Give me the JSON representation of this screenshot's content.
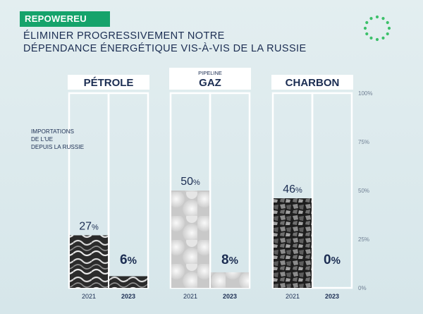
{
  "badge": "REPOWEREU",
  "title_line1": "ÉLIMINER PROGRESSIVEMENT NOTRE",
  "title_line2": "DÉPENDANCE ÉNERGÉTIQUE VIS-À-VIS DE LA RUSSIE",
  "colors": {
    "badge": "#15a36b",
    "navy": "#1b2d52",
    "stars": "#3cc06a"
  },
  "chart_data": {
    "type": "bar",
    "annotation": "IMPORTATIONS DE L'UE DEPUIS LA RUSSIE",
    "ylim": [
      0,
      100
    ],
    "y_ticks": [
      "0%",
      "25%",
      "50%",
      "75%",
      "100%"
    ],
    "categories": [
      "2021",
      "2023"
    ],
    "groups": [
      {
        "label": "PÉTROLE",
        "sublabel": "",
        "values": [
          27,
          6
        ],
        "value_labels": [
          "27%",
          "6%"
        ],
        "texture": "oil"
      },
      {
        "label": "GAZ",
        "sublabel": "PIPELINE",
        "values": [
          50,
          8
        ],
        "value_labels": [
          "50%",
          "8%"
        ],
        "texture": "gas"
      },
      {
        "label": "CHARBON",
        "sublabel": "",
        "values": [
          46,
          0
        ],
        "value_labels": [
          "46%",
          "0%"
        ],
        "texture": "coal"
      }
    ]
  }
}
